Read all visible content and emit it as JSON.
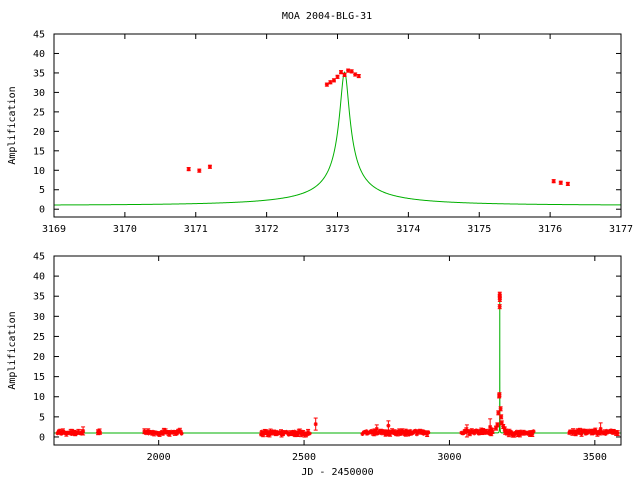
{
  "title": "MOA 2004-BLG-31",
  "colors": {
    "model": "#00b000",
    "data": "#ff0000",
    "axis": "#000000",
    "background": "#ffffff"
  },
  "chart_data": [
    {
      "type": "line",
      "panel": "top",
      "xlabel": "",
      "ylabel": "Amplification",
      "xlim": [
        3169,
        3177
      ],
      "ylim": [
        -2,
        45
      ],
      "xticks": [
        3169,
        3170,
        3171,
        3172,
        3173,
        3174,
        3175,
        3176,
        3177
      ],
      "yticks": [
        0,
        5,
        10,
        15,
        20,
        25,
        30,
        35,
        40,
        45
      ],
      "model": {
        "t0": 3173.1,
        "u0": 0.0284,
        "tE": 2.38,
        "baseline": 1
      },
      "points": [
        [
          3170.9,
          10.3
        ],
        [
          3171.05,
          9.9
        ],
        [
          3171.2,
          10.9
        ],
        [
          3172.85,
          32.0
        ],
        [
          3172.9,
          32.6
        ],
        [
          3172.95,
          33.1
        ],
        [
          3173.0,
          34.0
        ],
        [
          3173.05,
          35.2
        ],
        [
          3173.1,
          34.5
        ],
        [
          3173.15,
          35.6
        ],
        [
          3173.2,
          35.4
        ],
        [
          3173.25,
          34.6
        ],
        [
          3173.3,
          34.2
        ],
        [
          3176.05,
          7.2
        ],
        [
          3176.15,
          6.8
        ],
        [
          3176.25,
          6.5
        ]
      ]
    },
    {
      "type": "line",
      "panel": "bottom",
      "xlabel": "JD - 2450000",
      "ylabel": "Amplification",
      "xlim": [
        1640,
        3590
      ],
      "ylim": [
        -2,
        45
      ],
      "xticks": [
        2000,
        2500,
        3000,
        3500
      ],
      "yticks": [
        0,
        5,
        10,
        15,
        20,
        25,
        30,
        35,
        40,
        45
      ],
      "model": {
        "t0": 3173.1,
        "u0": 0.0284,
        "tE": 2.38,
        "baseline": 1
      },
      "seasons": [
        [
          1650,
          1740,
          1.1
        ],
        [
          1790,
          1800,
          1.0
        ],
        [
          1950,
          2020,
          1.1
        ],
        [
          2020,
          2080,
          1.2
        ],
        [
          2350,
          2520,
          1.0
        ],
        [
          2700,
          2930,
          1.1
        ],
        [
          3040,
          3150,
          1.3
        ],
        [
          3190,
          3290,
          1.0
        ],
        [
          3410,
          3580,
          1.2
        ]
      ],
      "peak_points": [
        [
          3173,
          35.5
        ],
        [
          3173,
          34.8
        ],
        [
          3173.3,
          34.2
        ],
        [
          3172.8,
          32.4
        ],
        [
          3172,
          10.5
        ],
        [
          3171,
          10.2
        ],
        [
          3176,
          7.0
        ],
        [
          3178,
          5.0
        ],
        [
          3168,
          6.0
        ],
        [
          3180,
          3.5
        ],
        [
          3165,
          3.0
        ],
        [
          3185,
          2.6
        ],
        [
          3160,
          2.2
        ],
        [
          3190,
          2.0
        ]
      ],
      "error_points": [
        [
          1740,
          1.5,
          1.0
        ],
        [
          2540,
          3.2,
          1.5
        ],
        [
          2750,
          2.0,
          1.0
        ],
        [
          2790,
          2.8,
          1.2
        ],
        [
          3060,
          1.5,
          1.5
        ],
        [
          3140,
          2.5,
          2.0
        ],
        [
          3520,
          2.0,
          1.5
        ]
      ]
    }
  ]
}
